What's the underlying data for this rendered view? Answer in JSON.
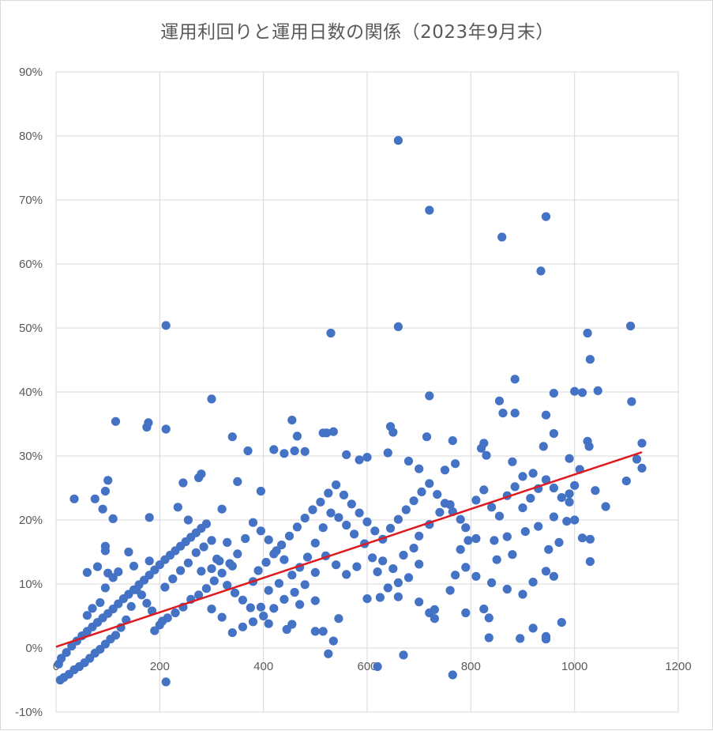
{
  "chart_data": {
    "type": "scatter",
    "title": "運用利回りと運用日数の関係（2023年9月末）",
    "xlabel": "",
    "ylabel": "",
    "xlim": [
      0,
      1200
    ],
    "ylim": [
      -10,
      90
    ],
    "x_ticks": [
      "0",
      "200",
      "400",
      "600",
      "800",
      "1000",
      "1200"
    ],
    "y_ticks": [
      "-10%",
      "0%",
      "10%",
      "20%",
      "30%",
      "40%",
      "50%",
      "60%",
      "70%",
      "80%",
      "90%"
    ],
    "grid": true,
    "point_color": "#4472C4",
    "trendline": {
      "color": "#E0191F",
      "points": [
        [
          0,
          0.2
        ],
        [
          1130,
          30.6
        ]
      ]
    },
    "points": [
      [
        660,
        79.3
      ],
      [
        720,
        68.4
      ],
      [
        945,
        67.4
      ],
      [
        860,
        64.2
      ],
      [
        935,
        58.9
      ],
      [
        212,
        50.4
      ],
      [
        530,
        49.2
      ],
      [
        660,
        50.2
      ],
      [
        1025,
        49.2
      ],
      [
        1108,
        50.3
      ],
      [
        1030,
        45.1
      ],
      [
        885,
        42.0
      ],
      [
        720,
        39.4
      ],
      [
        960,
        39.8
      ],
      [
        1000,
        40.1
      ],
      [
        1015,
        39.9
      ],
      [
        1045,
        40.2
      ],
      [
        1110,
        38.5
      ],
      [
        300,
        38.9
      ],
      [
        855,
        38.6
      ],
      [
        862,
        36.7
      ],
      [
        885,
        36.7
      ],
      [
        945,
        36.4
      ],
      [
        115,
        35.4
      ],
      [
        178,
        35.2
      ],
      [
        175,
        34.5
      ],
      [
        212,
        34.2
      ],
      [
        340,
        33.0
      ],
      [
        455,
        35.6
      ],
      [
        465,
        33.1
      ],
      [
        515,
        33.6
      ],
      [
        522,
        33.6
      ],
      [
        535,
        33.8
      ],
      [
        645,
        34.6
      ],
      [
        650,
        33.7
      ],
      [
        715,
        33.0
      ],
      [
        765,
        32.4
      ],
      [
        820,
        31.2
      ],
      [
        825,
        32.0
      ],
      [
        940,
        31.5
      ],
      [
        960,
        33.5
      ],
      [
        1025,
        32.3
      ],
      [
        1028,
        31.5
      ],
      [
        1130,
        32.0
      ],
      [
        990,
        29.6
      ],
      [
        1010,
        27.9
      ],
      [
        1000,
        25.4
      ],
      [
        1040,
        24.6
      ],
      [
        1060,
        22.1
      ],
      [
        1100,
        26.1
      ],
      [
        1120,
        29.5
      ],
      [
        1130,
        28.1
      ],
      [
        1015,
        17.2
      ],
      [
        1030,
        17.0
      ],
      [
        1030,
        13.5
      ],
      [
        1000,
        20.0
      ],
      [
        990,
        22.8
      ],
      [
        960,
        11.2
      ],
      [
        975,
        4.0
      ],
      [
        945,
        1.8
      ],
      [
        945,
        1.4
      ],
      [
        920,
        3.1
      ],
      [
        895,
        1.5
      ],
      [
        835,
        1.6
      ],
      [
        835,
        4.7
      ],
      [
        825,
        6.1
      ],
      [
        790,
        5.5
      ],
      [
        720,
        5.5
      ],
      [
        730,
        4.6
      ],
      [
        765,
        -4.2
      ],
      [
        670,
        -1.1
      ],
      [
        620,
        -2.9
      ],
      [
        525,
        -0.9
      ],
      [
        212,
        -5.3
      ],
      [
        205,
        4.2
      ],
      [
        255,
        20.0
      ],
      [
        235,
        22.0
      ],
      [
        245,
        25.8
      ],
      [
        280,
        27.2
      ],
      [
        275,
        26.6
      ],
      [
        370,
        30.8
      ],
      [
        350,
        26.0
      ],
      [
        395,
        24.5
      ],
      [
        420,
        31.0
      ],
      [
        440,
        30.4
      ],
      [
        460,
        30.8
      ],
      [
        480,
        30.7
      ],
      [
        560,
        30.2
      ],
      [
        585,
        29.4
      ],
      [
        600,
        29.8
      ],
      [
        640,
        30.5
      ],
      [
        680,
        29.2
      ],
      [
        700,
        28.0
      ],
      [
        750,
        27.8
      ],
      [
        770,
        28.8
      ],
      [
        830,
        30.1
      ],
      [
        880,
        29.1
      ],
      [
        900,
        26.8
      ],
      [
        920,
        27.3
      ],
      [
        35,
        23.3
      ],
      [
        75,
        23.3
      ],
      [
        90,
        21.7
      ],
      [
        100,
        26.2
      ],
      [
        95,
        24.5
      ],
      [
        110,
        20.2
      ],
      [
        180,
        20.4
      ],
      [
        140,
        15.0
      ],
      [
        95,
        15.9
      ],
      [
        95,
        15.2
      ],
      [
        100,
        11.7
      ],
      [
        95,
        9.4
      ],
      [
        60,
        11.8
      ],
      [
        110,
        11.0
      ],
      [
        80,
        12.7
      ],
      [
        320,
        21.7
      ],
      [
        300,
        16.8
      ],
      [
        330,
        16.5
      ],
      [
        310,
        13.9
      ],
      [
        280,
        12.0
      ],
      [
        340,
        12.8
      ],
      [
        380,
        10.4
      ],
      [
        410,
        9.0
      ],
      [
        430,
        10.1
      ],
      [
        395,
        6.4
      ],
      [
        410,
        3.8
      ],
      [
        445,
        2.9
      ],
      [
        455,
        3.7
      ],
      [
        500,
        2.6
      ],
      [
        515,
        2.6
      ],
      [
        535,
        1.1
      ],
      [
        545,
        4.6
      ],
      [
        470,
        6.8
      ],
      [
        500,
        7.4
      ],
      [
        600,
        7.7
      ],
      [
        625,
        7.9
      ],
      [
        660,
        8.0
      ],
      [
        700,
        7.2
      ],
      [
        730,
        6.0
      ],
      [
        760,
        9.0
      ],
      [
        770,
        11.4
      ],
      [
        790,
        12.6
      ],
      [
        810,
        11.2
      ],
      [
        840,
        10.2
      ],
      [
        870,
        9.2
      ],
      [
        900,
        8.4
      ],
      [
        920,
        10.3
      ],
      [
        945,
        12.0
      ],
      [
        850,
        13.8
      ],
      [
        880,
        14.6
      ],
      [
        950,
        15.4
      ],
      [
        970,
        16.5
      ],
      [
        985,
        19.8
      ],
      [
        960,
        20.5
      ],
      [
        930,
        19.0
      ],
      [
        905,
        18.2
      ],
      [
        870,
        17.4
      ],
      [
        845,
        16.8
      ],
      [
        810,
        17.1
      ],
      [
        790,
        18.8
      ],
      [
        780,
        20.1
      ],
      [
        760,
        22.4
      ],
      [
        740,
        21.2
      ],
      [
        720,
        19.3
      ],
      [
        700,
        17.5
      ],
      [
        690,
        15.6
      ],
      [
        670,
        14.5
      ],
      [
        650,
        12.4
      ],
      [
        630,
        13.6
      ],
      [
        610,
        14.1
      ],
      [
        595,
        16.3
      ],
      [
        575,
        17.8
      ],
      [
        560,
        19.2
      ],
      [
        545,
        20.4
      ],
      [
        530,
        21.1
      ],
      [
        515,
        18.8
      ],
      [
        500,
        16.4
      ],
      [
        485,
        14.2
      ],
      [
        470,
        12.6
      ],
      [
        455,
        11.4
      ],
      [
        440,
        13.8
      ],
      [
        425,
        15.2
      ],
      [
        410,
        16.9
      ],
      [
        395,
        18.3
      ],
      [
        380,
        19.6
      ],
      [
        365,
        17.1
      ],
      [
        350,
        14.7
      ],
      [
        335,
        13.2
      ],
      [
        320,
        11.7
      ],
      [
        305,
        10.5
      ],
      [
        290,
        9.3
      ],
      [
        275,
        8.3
      ],
      [
        260,
        7.6
      ],
      [
        245,
        6.4
      ],
      [
        230,
        5.5
      ],
      [
        215,
        4.7
      ],
      [
        200,
        3.6
      ],
      [
        190,
        2.7
      ],
      [
        185,
        5.8
      ],
      [
        175,
        7.0
      ],
      [
        165,
        8.3
      ],
      [
        155,
        9.1
      ],
      [
        145,
        6.5
      ],
      [
        135,
        4.4
      ],
      [
        125,
        3.2
      ],
      [
        115,
        2.0
      ],
      [
        105,
        1.4
      ],
      [
        95,
        0.6
      ],
      [
        85,
        -0.2
      ],
      [
        75,
        -0.8
      ],
      [
        65,
        -1.6
      ],
      [
        55,
        -2.3
      ],
      [
        45,
        -2.9
      ],
      [
        35,
        -3.4
      ],
      [
        25,
        -4.1
      ],
      [
        15,
        -4.6
      ],
      [
        8,
        -5.0
      ],
      [
        5,
        -2.5
      ],
      [
        10,
        -1.6
      ],
      [
        20,
        -0.7
      ],
      [
        30,
        0.3
      ],
      [
        40,
        1.1
      ],
      [
        50,
        1.9
      ],
      [
        60,
        2.6
      ],
      [
        70,
        3.3
      ],
      [
        80,
        4.0
      ],
      [
        90,
        4.7
      ],
      [
        100,
        5.4
      ],
      [
        110,
        6.1
      ],
      [
        120,
        6.9
      ],
      [
        130,
        7.7
      ],
      [
        140,
        8.4
      ],
      [
        150,
        9.1
      ],
      [
        160,
        9.9
      ],
      [
        170,
        10.6
      ],
      [
        180,
        11.4
      ],
      [
        190,
        12.2
      ],
      [
        200,
        13.0
      ],
      [
        210,
        13.8
      ],
      [
        220,
        14.5
      ],
      [
        230,
        15.2
      ],
      [
        240,
        15.9
      ],
      [
        250,
        16.6
      ],
      [
        260,
        17.3
      ],
      [
        270,
        18.0
      ],
      [
        280,
        18.7
      ],
      [
        290,
        19.4
      ],
      [
        60,
        5.1
      ],
      [
        70,
        6.2
      ],
      [
        85,
        7.1
      ],
      [
        120,
        11.9
      ],
      [
        150,
        12.8
      ],
      [
        180,
        13.6
      ],
      [
        210,
        9.5
      ],
      [
        225,
        10.8
      ],
      [
        240,
        12.1
      ],
      [
        255,
        13.3
      ],
      [
        270,
        14.9
      ],
      [
        285,
        15.8
      ],
      [
        300,
        12.4
      ],
      [
        315,
        13.6
      ],
      [
        330,
        9.8
      ],
      [
        345,
        8.6
      ],
      [
        360,
        7.5
      ],
      [
        375,
        6.3
      ],
      [
        390,
        12.1
      ],
      [
        405,
        13.4
      ],
      [
        420,
        14.7
      ],
      [
        435,
        16.1
      ],
      [
        450,
        17.5
      ],
      [
        465,
        18.9
      ],
      [
        480,
        20.3
      ],
      [
        495,
        21.6
      ],
      [
        510,
        22.8
      ],
      [
        525,
        24.2
      ],
      [
        540,
        25.5
      ],
      [
        555,
        23.9
      ],
      [
        570,
        22.5
      ],
      [
        585,
        21.1
      ],
      [
        600,
        19.7
      ],
      [
        615,
        18.3
      ],
      [
        630,
        17.0
      ],
      [
        645,
        18.7
      ],
      [
        660,
        20.1
      ],
      [
        675,
        21.6
      ],
      [
        690,
        23.0
      ],
      [
        705,
        24.4
      ],
      [
        720,
        25.7
      ],
      [
        735,
        24.0
      ],
      [
        750,
        22.6
      ],
      [
        765,
        21.3
      ],
      [
        780,
        15.4
      ],
      [
        795,
        16.8
      ],
      [
        810,
        23.1
      ],
      [
        825,
        24.7
      ],
      [
        840,
        22.0
      ],
      [
        855,
        20.6
      ],
      [
        870,
        23.8
      ],
      [
        885,
        25.2
      ],
      [
        900,
        21.9
      ],
      [
        915,
        23.4
      ],
      [
        930,
        24.9
      ],
      [
        945,
        26.3
      ],
      [
        960,
        25.0
      ],
      [
        975,
        23.5
      ],
      [
        990,
        24.1
      ],
      [
        700,
        13.1
      ],
      [
        680,
        11.0
      ],
      [
        660,
        10.2
      ],
      [
        640,
        9.4
      ],
      [
        620,
        11.9
      ],
      [
        580,
        12.7
      ],
      [
        560,
        11.5
      ],
      [
        540,
        13.0
      ],
      [
        520,
        14.4
      ],
      [
        500,
        11.8
      ],
      [
        480,
        9.9
      ],
      [
        460,
        8.7
      ],
      [
        440,
        7.6
      ],
      [
        420,
        6.2
      ],
      [
        400,
        5.0
      ],
      [
        380,
        4.1
      ],
      [
        360,
        3.3
      ],
      [
        340,
        2.4
      ],
      [
        320,
        4.8
      ],
      [
        300,
        6.1
      ]
    ]
  }
}
